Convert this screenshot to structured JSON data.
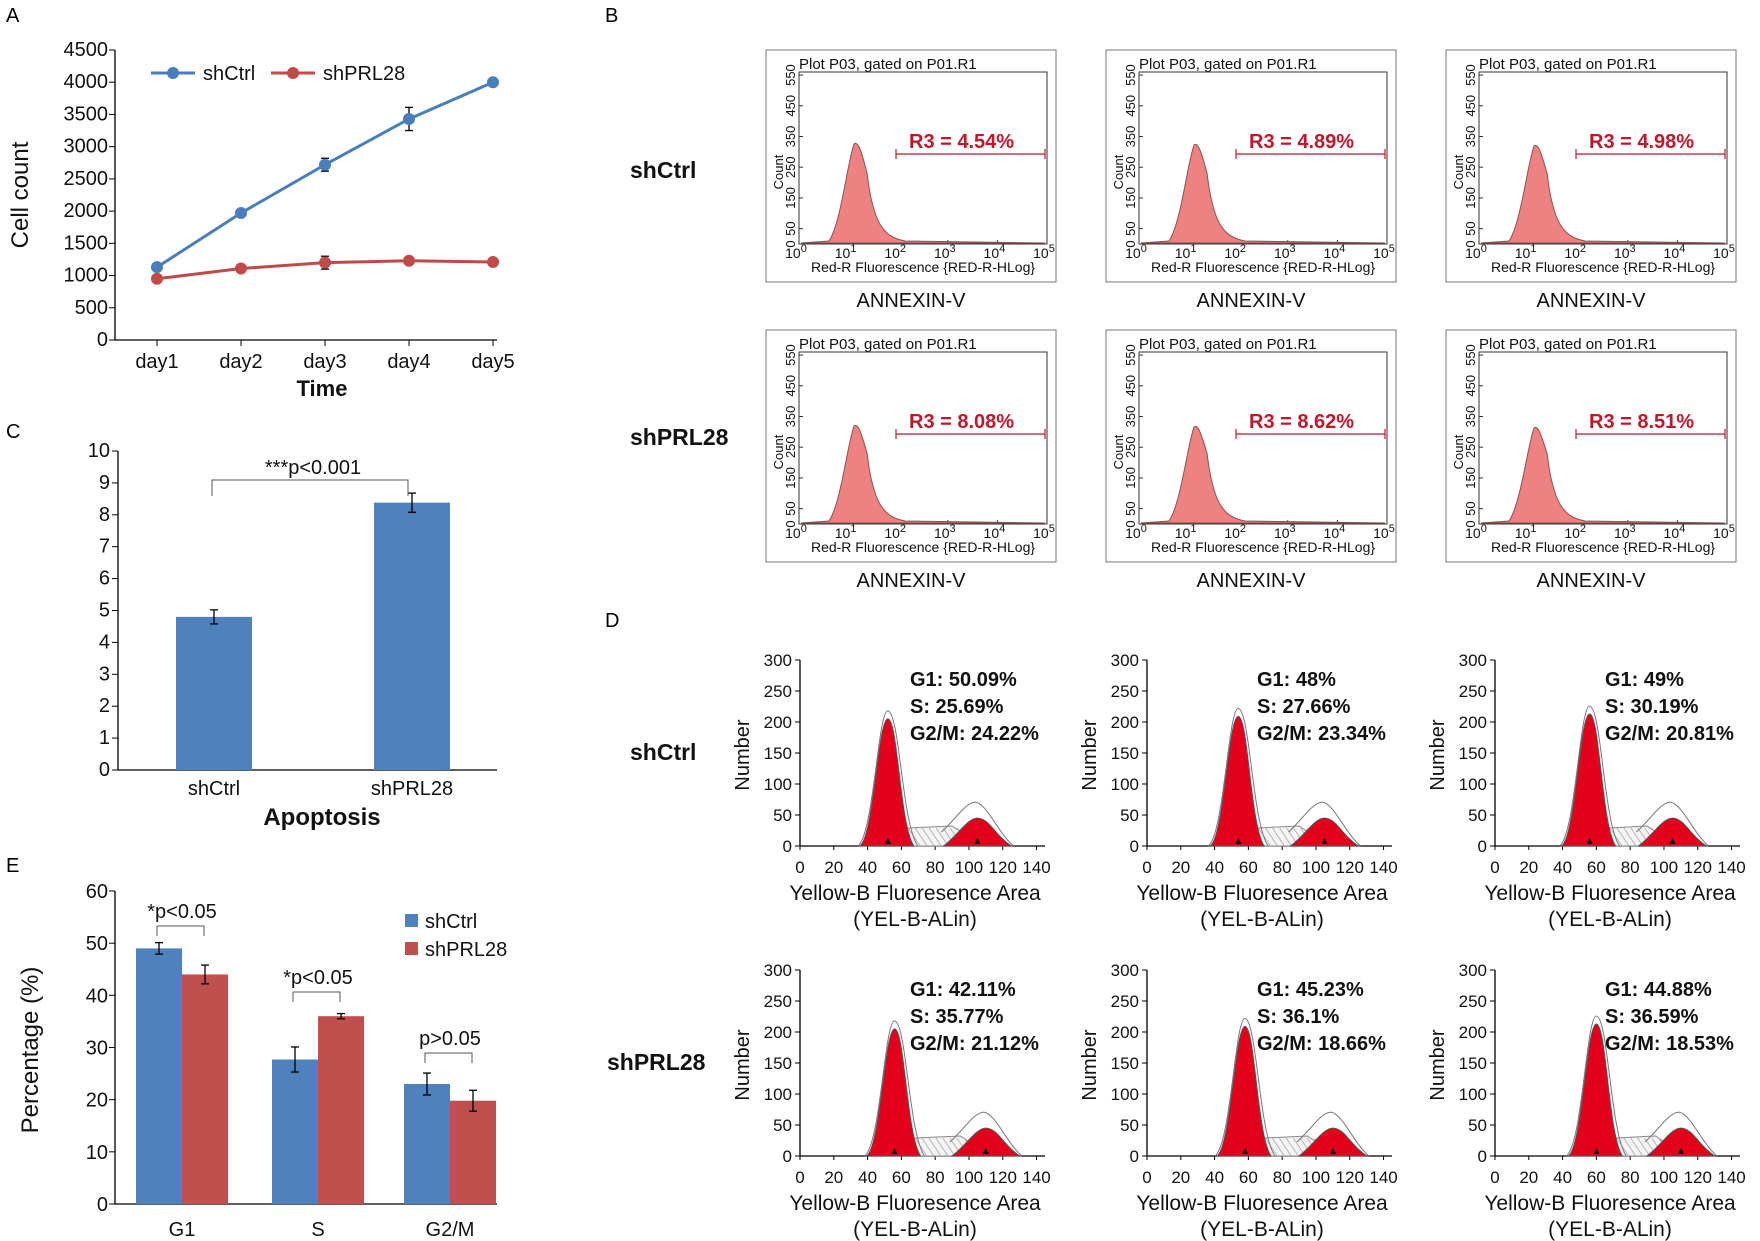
{
  "colors": {
    "blue": "#4a7ebb",
    "red": "#be4b48",
    "bar_blue": "#4f81bd",
    "bar_red": "#c0504d",
    "facs_fill": "#ee8282",
    "facs_label": "#c0172c",
    "cycle_red": "#e3001b"
  },
  "panels": {
    "a": "A",
    "b": "B",
    "c": "C",
    "d": "D",
    "e": "E"
  },
  "row_labels": {
    "ctrl": "shCtrl",
    "prl": "shPRL28"
  },
  "chart_data": [
    {
      "id": "A",
      "type": "line",
      "xlabel": "Time",
      "ylabel": "Cell  count",
      "categories": [
        "day1",
        "day2",
        "day3",
        "day4",
        "day5"
      ],
      "yticks": [
        "0",
        "500",
        "1000",
        "1500",
        "2000",
        "2500",
        "3000",
        "3500",
        "4000",
        "4500"
      ],
      "ylim": [
        0,
        4500
      ],
      "legend": "top-left",
      "series": [
        {
          "name": "shCtrl",
          "values": [
            1130,
            1970,
            2720,
            3430,
            4000
          ],
          "errors": [
            30,
            40,
            100,
            180,
            20
          ],
          "color": "#4a7ebb"
        },
        {
          "name": "shPRL28",
          "values": [
            950,
            1110,
            1200,
            1230,
            1210
          ],
          "errors": [
            20,
            60,
            100,
            40,
            30
          ],
          "color": "#be4b48"
        }
      ]
    },
    {
      "id": "C",
      "type": "bar",
      "xlabel": "Apoptosis",
      "categories": [
        "shCtrl",
        "shPRL28"
      ],
      "values": [
        4.8,
        8.38
      ],
      "errors": [
        0.22,
        0.3
      ],
      "yticks": [
        "0",
        "1",
        "2",
        "3",
        "4",
        "5",
        "6",
        "7",
        "8",
        "9",
        "10"
      ],
      "ylim": [
        0,
        10
      ],
      "annotation": "***p<0.001"
    },
    {
      "id": "E",
      "type": "bar",
      "ylabel": "Percentage (%)",
      "categories": [
        "G1",
        "S",
        "G2/M"
      ],
      "yticks": [
        "0",
        "10",
        "20",
        "30",
        "40",
        "50",
        "60"
      ],
      "ylim": [
        0,
        60
      ],
      "legend": "top-right",
      "series": [
        {
          "name": "shCtrl",
          "values": [
            49,
            27.7,
            23
          ],
          "errors": [
            1.1,
            2.4,
            2.1
          ]
        },
        {
          "name": "shPRL28",
          "values": [
            44,
            36,
            19.8
          ],
          "errors": [
            1.8,
            0.5,
            2.0
          ]
        }
      ],
      "annotations": [
        "*p<0.05",
        "*p<0.05",
        "p>0.05"
      ]
    },
    {
      "id": "B",
      "type": "area",
      "plot_title": "Plot P03, gated on P01.R1",
      "xlabel": "Red-R Fluorescence {RED-R-HLog}",
      "ylabel": "Count",
      "yticks": [
        "0",
        "50",
        "150",
        "250",
        "350",
        "450",
        "550"
      ],
      "xtick_base": "10",
      "xtick_exps": [
        "0",
        "1",
        "2",
        "3",
        "4",
        "5"
      ],
      "caption": "ANNEXIN-V",
      "rows": [
        {
          "group": "shCtrl",
          "gates": [
            "R3 = 4.54%",
            "R3 = 4.89%",
            "R3 = 4.98%"
          ]
        },
        {
          "group": "shPRL28",
          "gates": [
            "R3 = 8.08%",
            "R3 = 8.62%",
            "R3 = 8.51%"
          ]
        }
      ]
    },
    {
      "id": "D",
      "type": "area",
      "ylabel": "Number",
      "xlabel": "Yellow-B Fluoresence Area",
      "xlabel2": "(YEL-B-ALin)",
      "xticks": [
        "0",
        "20",
        "40",
        "60",
        "80",
        "100",
        "120",
        "140"
      ],
      "yticks": [
        "0",
        "50",
        "100",
        "150",
        "200",
        "250",
        "300"
      ],
      "rows": [
        {
          "group": "shCtrl",
          "stats": [
            {
              "g1": "G1: 50.09%",
              "s": "S: 25.69%",
              "g2m": "G2/M: 24.22%"
            },
            {
              "g1": "G1: 48%",
              "s": "S: 27.66%",
              "g2m": "G2/M: 23.34%"
            },
            {
              "g1": "G1: 49%",
              "s": "S: 30.19%",
              "g2m": "G2/M: 20.81%"
            }
          ]
        },
        {
          "group": "shPRL28",
          "stats": [
            {
              "g1": "G1: 42.11%",
              "s": "S: 35.77%",
              "g2m": "G2/M: 21.12%"
            },
            {
              "g1": "G1: 45.23%",
              "s": "S: 36.1%",
              "g2m": "G2/M: 18.66%"
            },
            {
              "g1": "G1: 44.88%",
              "s": "S: 36.59%",
              "g2m": "G2/M: 18.53%"
            }
          ]
        }
      ]
    }
  ]
}
